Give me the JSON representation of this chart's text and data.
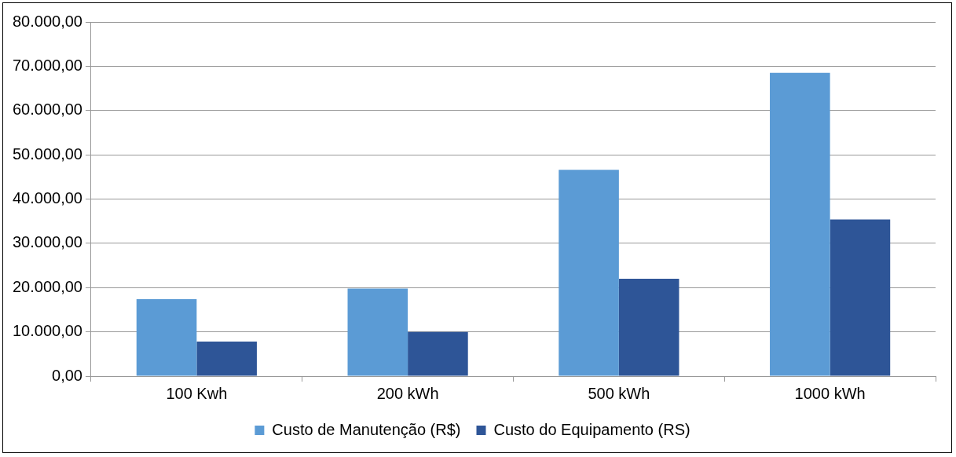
{
  "chart_data": {
    "type": "bar",
    "categories": [
      "100 Kwh",
      "200 kWh",
      "500 kWh",
      "1000 kWh"
    ],
    "series": [
      {
        "name": "Custo de Manutenção (R$)",
        "color": "#5b9bd5",
        "values": [
          17400,
          19800,
          46600,
          68500
        ]
      },
      {
        "name": "Custo do Equipamento (RS)",
        "color": "#2e5597",
        "values": [
          7800,
          10000,
          22000,
          35400
        ]
      }
    ],
    "ylim": [
      0,
      80000
    ],
    "yticks": [
      {
        "value": 0,
        "label": "0,00"
      },
      {
        "value": 10000,
        "label": "10.000,00"
      },
      {
        "value": 20000,
        "label": "20.000,00"
      },
      {
        "value": 30000,
        "label": "30.000,00"
      },
      {
        "value": 40000,
        "label": "40.000,00"
      },
      {
        "value": 50000,
        "label": "50.000,00"
      },
      {
        "value": 60000,
        "label": "60.000,00"
      },
      {
        "value": 70000,
        "label": "70.000,00"
      },
      {
        "value": 80000,
        "label": "80.000,00"
      }
    ],
    "grid": "y",
    "legend": "bottom"
  }
}
